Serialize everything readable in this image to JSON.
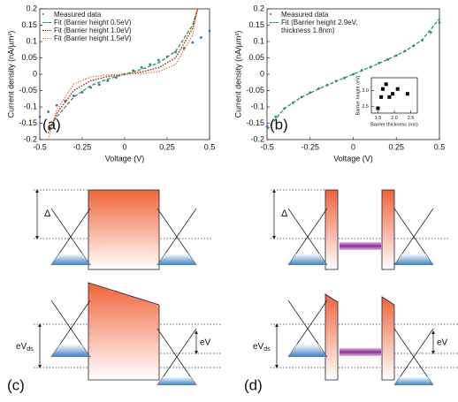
{
  "chart_data": [
    {
      "type": "line",
      "panel_label": "(a)",
      "xlabel": "Voltage (V)",
      "ylabel": "Current density (nA/µm²)",
      "xlim": [
        -0.5,
        0.5
      ],
      "ylim": [
        -0.2,
        0.2
      ],
      "xticks": [
        -0.5,
        -0.25,
        0,
        0.25,
        0.5
      ],
      "yticks": [
        -0.2,
        -0.15,
        -0.1,
        -0.05,
        0,
        0.05,
        0.1,
        0.15,
        0.2
      ],
      "legend": "top-left",
      "series": [
        {
          "name": "Measured data",
          "color": "#3a6fc4",
          "style": "markers",
          "x": [
            -0.5,
            -0.45,
            -0.4,
            -0.35,
            -0.3,
            -0.25,
            -0.2,
            -0.15,
            -0.1,
            -0.05,
            0,
            0.05,
            0.1,
            0.15,
            0.2,
            0.25,
            0.3,
            0.35,
            0.4,
            0.45,
            0.5
          ],
          "values": [
            -0.13,
            -0.115,
            -0.095,
            -0.082,
            -0.066,
            -0.055,
            -0.041,
            -0.032,
            -0.02,
            -0.01,
            0,
            0.011,
            0.021,
            0.03,
            0.043,
            0.053,
            0.068,
            0.08,
            0.097,
            0.112,
            0.132
          ]
        },
        {
          "name": "Fit (Barrier height 0.5eV)",
          "color": "#2a9a3a",
          "style": "dashed",
          "x": [
            -0.45,
            -0.4,
            -0.3,
            -0.2,
            -0.1,
            0,
            0.1,
            0.2,
            0.3,
            0.4,
            0.43
          ],
          "values": [
            -0.17,
            -0.13,
            -0.07,
            -0.035,
            -0.015,
            0,
            0.015,
            0.035,
            0.07,
            0.15,
            0.2
          ]
        },
        {
          "name": "Fit (Barrier height 1.0eV)",
          "color": "#8b1a1a",
          "style": "dotted",
          "x": [
            -0.45,
            -0.4,
            -0.3,
            -0.2,
            -0.1,
            0,
            0.1,
            0.2,
            0.3,
            0.4,
            0.43
          ],
          "values": [
            -0.18,
            -0.12,
            -0.05,
            -0.02,
            -0.007,
            0,
            0.007,
            0.02,
            0.05,
            0.14,
            0.2
          ]
        },
        {
          "name": "Fit (Barrier height 1.5eV)",
          "color": "#f07830",
          "style": "dotted",
          "x": [
            -0.45,
            -0.4,
            -0.3,
            -0.2,
            -0.1,
            0,
            0.1,
            0.2,
            0.3,
            0.4,
            0.43
          ],
          "values": [
            -0.2,
            -0.11,
            -0.03,
            -0.008,
            -0.002,
            0,
            0.002,
            0.008,
            0.03,
            0.12,
            0.2
          ]
        }
      ]
    },
    {
      "type": "line",
      "panel_label": "(b)",
      "xlabel": "Voltage (V)",
      "ylabel": "Current density (nA/µm²)",
      "xlim": [
        -0.5,
        0.5
      ],
      "ylim": [
        -0.2,
        0.2
      ],
      "xticks": [
        -0.5,
        -0.25,
        0,
        0.25,
        0.5
      ],
      "yticks": [
        -0.2,
        -0.15,
        -0.1,
        -0.05,
        0,
        0.05,
        0.1,
        0.15,
        0.2
      ],
      "legend": "top-left",
      "series": [
        {
          "name": "Measured data",
          "color": "#3a6fc4",
          "style": "markers",
          "x": [
            -0.5,
            -0.45,
            -0.4,
            -0.35,
            -0.3,
            -0.25,
            -0.2,
            -0.15,
            -0.1,
            -0.05,
            0,
            0.05,
            0.1,
            0.15,
            0.2,
            0.25,
            0.3,
            0.35,
            0.4,
            0.45,
            0.5
          ],
          "values": [
            -0.16,
            -0.13,
            -0.105,
            -0.088,
            -0.07,
            -0.056,
            -0.044,
            -0.033,
            -0.021,
            -0.011,
            0,
            0.012,
            0.022,
            0.034,
            0.045,
            0.057,
            0.071,
            0.087,
            0.104,
            0.128,
            0.158
          ]
        },
        {
          "name": "Fit (Barrier height 2.9eV, thickness 1.8nm)",
          "color": "#2a9a3a",
          "style": "dashed",
          "x": [
            -0.5,
            -0.4,
            -0.3,
            -0.2,
            -0.1,
            0,
            0.1,
            0.2,
            0.3,
            0.4,
            0.5
          ],
          "values": [
            -0.17,
            -0.105,
            -0.07,
            -0.045,
            -0.022,
            0,
            0.022,
            0.045,
            0.07,
            0.105,
            0.17
          ]
        }
      ]
    },
    {
      "type": "scatter",
      "xlabel": "Barrier thickness (nm)",
      "ylabel": "Barrier height (eV)",
      "xlim": [
        1.3,
        2.7
      ],
      "ylim": [
        2.3,
        3.4
      ],
      "xticks": [
        1.5,
        {
          "value": 2,
          "label": "2.0"
        },
        2.5
      ],
      "yticks": [
        2.5,
        {
          "value": 3,
          "label": "3.0"
        }
      ],
      "series": [
        {
          "color": "#000000",
          "style": "squares",
          "x": [
            1.5,
            1.6,
            1.65,
            1.75,
            1.85,
            1.95,
            2.1,
            2.4
          ],
          "values": [
            2.45,
            2.8,
            3.05,
            3.2,
            2.8,
            2.9,
            3.05,
            2.9
          ]
        }
      ]
    }
  ],
  "diagrams": [
    {
      "label": "(c)",
      "delta": "Δ",
      "bias": {
        "main": "eV",
        "sub": "ds"
      },
      "gate": "eV"
    },
    {
      "label": "(d)",
      "delta": "Δ",
      "bias": {
        "main": "eV",
        "sub": "ds"
      },
      "gate": "eV"
    }
  ]
}
